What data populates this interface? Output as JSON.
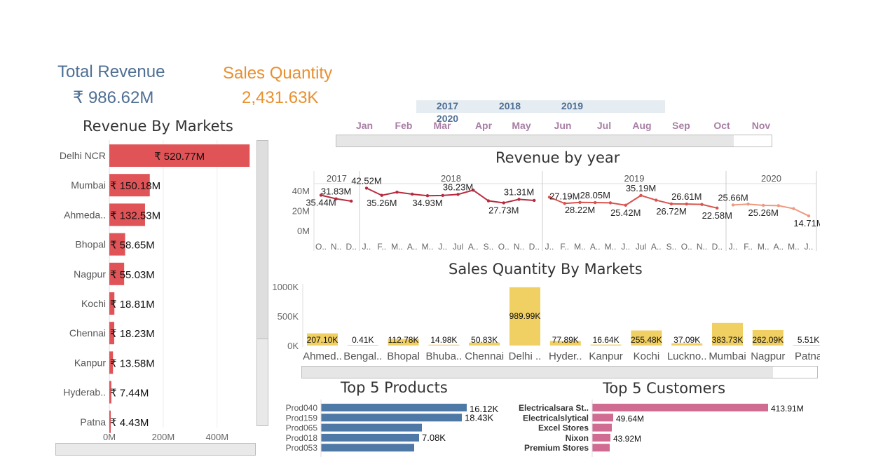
{
  "kpis": {
    "revenue": {
      "title": "Total Revenue",
      "value": "₹ 986.62M",
      "color": "#4f6f94"
    },
    "quantity": {
      "title": "Sales Quantity",
      "value": "2,431.63K",
      "color": "#e8902f"
    }
  },
  "filters": {
    "years": [
      "2017",
      "2018",
      "2019",
      "2020"
    ],
    "months": [
      "Jan",
      "Feb",
      "Mar",
      "Apr",
      "May",
      "Jun",
      "Jul",
      "Aug",
      "Sep",
      "Oct",
      "Nov"
    ]
  },
  "colors": {
    "red_bar": "#e05356",
    "yellow_bar": "#f0cf63",
    "blue_bar": "#4e79a7",
    "pink_bar": "#d06b91",
    "line_dark": "#b82b3f",
    "line_light": "#ee9a80"
  },
  "sections": {
    "revenue_by_markets": "Revenue By Markets",
    "revenue_by_year": "Revenue by year",
    "sales_qty_by_markets": "Sales Quantity By Markets",
    "top_products": "Top 5 Products",
    "top_customers": "Top 5 Customers"
  },
  "chart_data": [
    {
      "id": "revenue_by_markets",
      "type": "bar",
      "orientation": "horizontal",
      "title": "Revenue By Markets",
      "categories": [
        "Delhi NCR",
        "Mumbai",
        "Ahmeda..",
        "Bhopal",
        "Nagpur",
        "Kochi",
        "Chennai",
        "Kanpur",
        "Hyderab..",
        "Patna"
      ],
      "values": [
        520.77,
        150.18,
        132.53,
        58.65,
        55.03,
        18.81,
        18.23,
        13.58,
        7.44,
        4.43
      ],
      "labels": [
        "₹ 520.77M",
        "₹ 150.18M",
        "₹ 132.53M",
        "₹ 58.65M",
        "₹ 55.03M",
        "₹ 18.81M",
        "₹ 18.23M",
        "₹ 13.58M",
        "₹ 7.44M",
        "₹ 4.43M"
      ],
      "xticks": [
        "0M",
        "200M",
        "400M"
      ],
      "xlim": [
        0,
        540
      ]
    },
    {
      "id": "revenue_by_year",
      "type": "line",
      "title": "Revenue by year",
      "years": [
        {
          "name": "2017",
          "months": [
            "O..",
            "N..",
            "D.."
          ],
          "values": [
            35.44,
            31.83,
            29.5
          ],
          "labels": [
            {
              "i": 0,
              "t": "35.44M",
              "pos": "below"
            },
            {
              "i": 1,
              "t": "31.83M",
              "pos": "above"
            }
          ]
        },
        {
          "name": "2018",
          "months": [
            "J..",
            "F..",
            "M..",
            "A..",
            "M..",
            "J..",
            "Jul",
            "A..",
            "S..",
            "O..",
            "N..",
            "D.."
          ],
          "values": [
            42.52,
            35.26,
            38.5,
            36.5,
            34.93,
            35.2,
            36.23,
            40.5,
            29.8,
            27.73,
            31.31,
            30.2
          ],
          "labels": [
            {
              "i": 0,
              "t": "42.52M",
              "pos": "above"
            },
            {
              "i": 1,
              "t": "35.26M",
              "pos": "below"
            },
            {
              "i": 4,
              "t": "34.93M",
              "pos": "below"
            },
            {
              "i": 6,
              "t": "36.23M",
              "pos": "above"
            },
            {
              "i": 9,
              "t": "27.73M",
              "pos": "below"
            },
            {
              "i": 10,
              "t": "31.31M",
              "pos": "above"
            }
          ]
        },
        {
          "name": "2019",
          "months": [
            "J..",
            "F..",
            "M..",
            "A..",
            "M..",
            "J..",
            "Jul",
            "A..",
            "S..",
            "O..",
            "N..",
            "D.."
          ],
          "values": [
            33.5,
            27.19,
            28.22,
            28.05,
            27.8,
            25.42,
            35.19,
            30.5,
            26.72,
            26.61,
            26.2,
            22.58
          ],
          "labels": [
            {
              "i": 1,
              "t": "27.19M",
              "pos": "above"
            },
            {
              "i": 2,
              "t": "28.22M",
              "pos": "below"
            },
            {
              "i": 3,
              "t": "28.05M",
              "pos": "above"
            },
            {
              "i": 5,
              "t": "25.42M",
              "pos": "below"
            },
            {
              "i": 6,
              "t": "35.19M",
              "pos": "above"
            },
            {
              "i": 8,
              "t": "26.72M",
              "pos": "below"
            },
            {
              "i": 9,
              "t": "26.61M",
              "pos": "above"
            },
            {
              "i": 11,
              "t": "22.58M",
              "pos": "below"
            }
          ]
        },
        {
          "name": "2020",
          "months": [
            "J..",
            "F..",
            "M..",
            "A..",
            "M..",
            "J.."
          ],
          "values": [
            25.66,
            26.5,
            25.26,
            25.0,
            22.0,
            14.71
          ],
          "labels": [
            {
              "i": 0,
              "t": "25.66M",
              "pos": "above"
            },
            {
              "i": 2,
              "t": "25.26M",
              "pos": "below"
            },
            {
              "i": 5,
              "t": "14.71M",
              "pos": "below"
            }
          ]
        }
      ],
      "yticks": [
        "40M",
        "20M",
        "0M"
      ],
      "ylim": [
        0,
        45
      ]
    },
    {
      "id": "sales_qty_by_markets",
      "type": "bar",
      "title": "Sales Quantity By Markets",
      "categories": [
        "Ahmed..",
        "Bengal..",
        "Bhopal",
        "Bhuba..",
        "Chennai",
        "Delhi ..",
        "Hyder..",
        "Kanpur",
        "Kochi",
        "Luckno..",
        "Mumbai",
        "Nagpur",
        "Patna"
      ],
      "values": [
        207.1,
        0.41,
        112.78,
        14.98,
        50.83,
        989.99,
        77.89,
        16.64,
        255.48,
        37.09,
        383.73,
        262.09,
        5.51
      ],
      "labels": [
        "207.10K",
        "0.41K",
        "112.78K",
        "14.98K",
        "50.83K",
        "989.99K",
        "77.89K",
        "16.64K",
        "255.48K",
        "37.09K",
        "383.73K",
        "262.09K",
        "5.51K"
      ],
      "yticks": [
        "1000K",
        "500K",
        "0K"
      ],
      "ylim": [
        0,
        1000
      ]
    },
    {
      "id": "top_products",
      "type": "bar",
      "orientation": "horizontal",
      "title": "Top 5 Products",
      "categories": [
        "Prod040",
        "Prod159",
        "Prod065",
        "Prod018",
        "Prod053"
      ],
      "values": [
        16.12,
        18.43,
        14.0,
        7.08,
        13.5
      ],
      "labels": [
        "16.12K",
        "18.43K",
        "",
        "7.08K",
        ""
      ]
    },
    {
      "id": "top_customers",
      "type": "bar",
      "orientation": "horizontal",
      "title": "Top 5 Customers",
      "categories": [
        "Electricalsara St..",
        "Electricalslytical",
        "Excel Stores",
        "Nixon",
        "Premium Stores"
      ],
      "values": [
        413.91,
        49.64,
        47.0,
        43.92,
        42.0
      ],
      "labels": [
        "413.91M",
        "49.64M",
        "",
        "43.92M",
        ""
      ]
    }
  ]
}
